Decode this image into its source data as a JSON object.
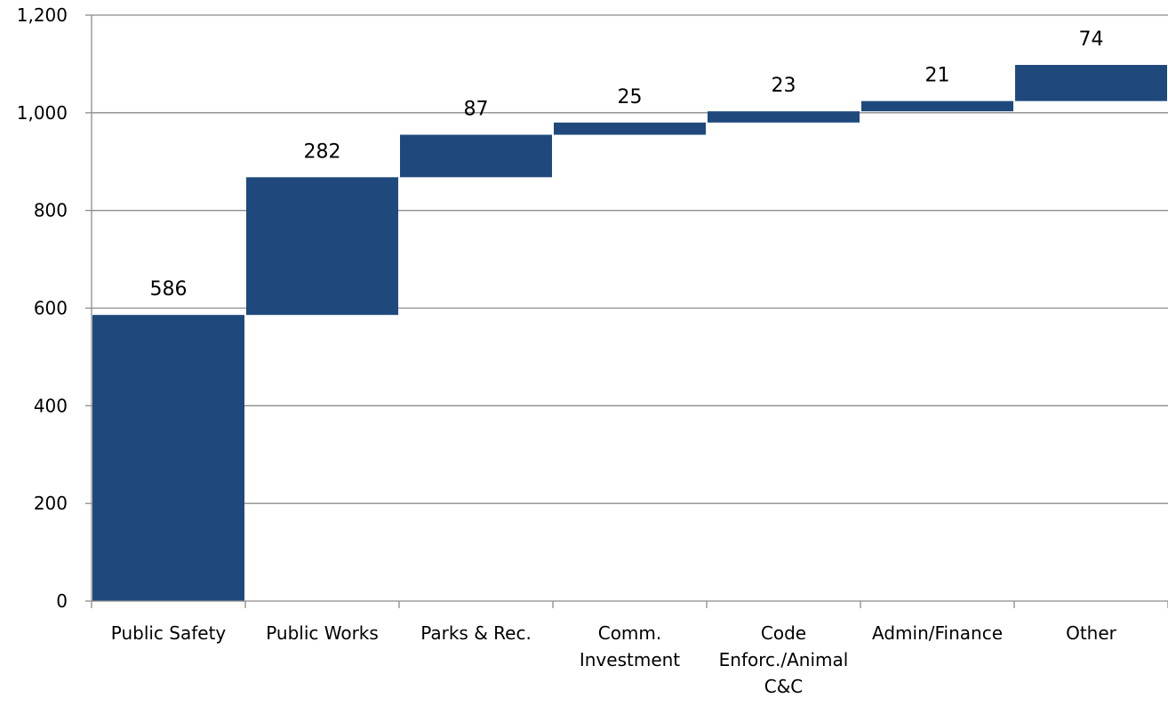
{
  "chart_data": {
    "type": "bar",
    "subtype": "waterfall",
    "title": "",
    "xlabel": "",
    "ylabel": "",
    "ylim": [
      0,
      1200
    ],
    "yticks": [
      "0",
      "200",
      "400",
      "600",
      "800",
      "1,000",
      "1,200"
    ],
    "ytick_values": [
      0,
      200,
      400,
      600,
      800,
      1000,
      1200
    ],
    "grid": true,
    "legend": "none",
    "bar_color": "#1F497D",
    "categories": [
      [
        "Public Safety"
      ],
      [
        "Public Works"
      ],
      [
        "Parks & Rec."
      ],
      [
        "Comm.",
        "Investment"
      ],
      [
        "Code",
        "Enforc./Animal",
        "C&C"
      ],
      [
        "Admin/Finance"
      ],
      [
        "Other"
      ]
    ],
    "values": [
      586,
      282,
      87,
      25,
      23,
      21,
      74
    ],
    "value_labels": [
      "586",
      "282",
      "87",
      "25",
      "23",
      "21",
      "74"
    ]
  }
}
